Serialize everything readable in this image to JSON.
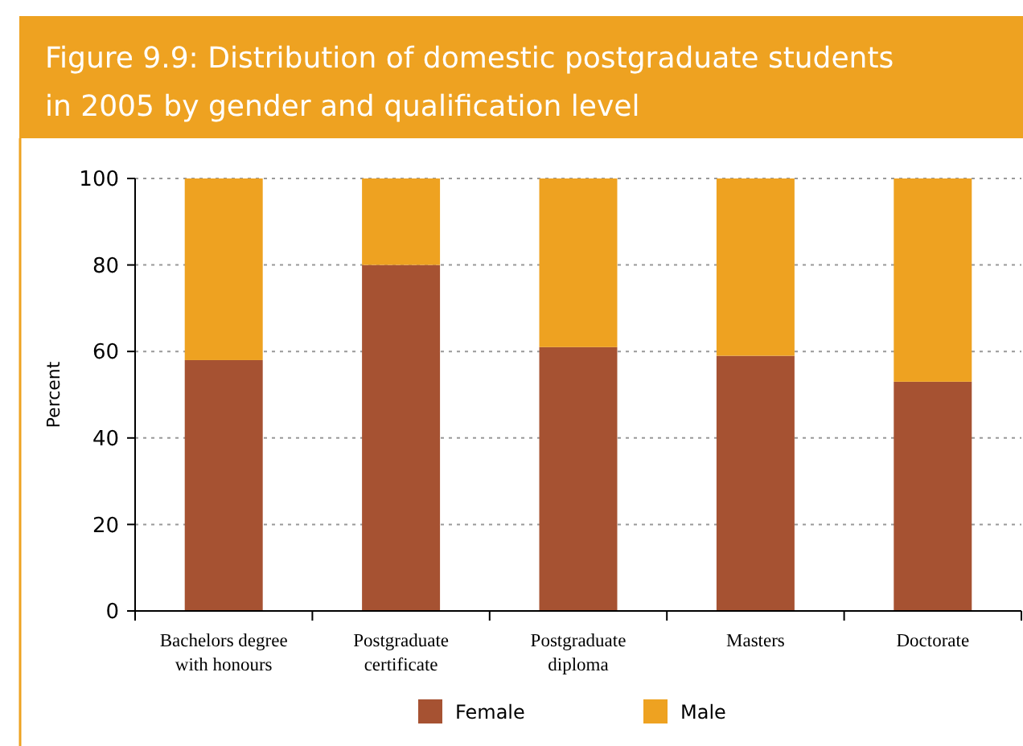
{
  "chart_data": {
    "type": "bar",
    "title": "Figure 9.9: Distribution of domestic postgraduate students in 2005 by gender and qualification level",
    "ylabel": "Percent",
    "categories": [
      "Bachelors degree with honours",
      "Postgraduate certificate",
      "Postgraduate diploma",
      "Masters",
      "Doctorate"
    ],
    "stacked": true,
    "series": [
      {
        "name": "Female",
        "color": "#a65232",
        "values": [
          58,
          80,
          61,
          59,
          53
        ]
      },
      {
        "name": "Male",
        "color": "#eea221",
        "values": [
          42,
          20,
          39,
          41,
          47
        ]
      }
    ],
    "ylim": [
      0,
      100
    ],
    "yticks": [
      0,
      20,
      40,
      60,
      80,
      100
    ],
    "grid": "y",
    "legend": "bottom"
  }
}
